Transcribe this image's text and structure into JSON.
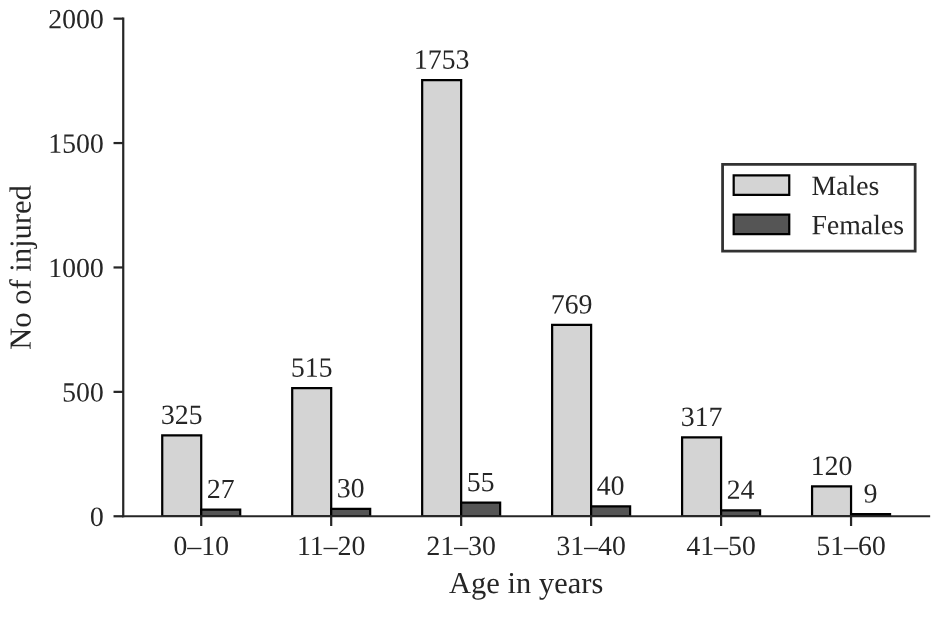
{
  "chart_data": {
    "type": "bar",
    "xlabel": "Age in years",
    "ylabel": "No of injured",
    "categories": [
      "0–10",
      "11–20",
      "21–30",
      "31–40",
      "41–50",
      "51–60"
    ],
    "series": [
      {
        "name": "Males",
        "color": "#d4d4d4",
        "values": [
          325,
          515,
          1753,
          769,
          317,
          120
        ]
      },
      {
        "name": "Females",
        "color": "#555555",
        "values": [
          27,
          30,
          55,
          40,
          24,
          9
        ]
      }
    ],
    "ylim": [
      0,
      2000
    ],
    "yticks": [
      0,
      500,
      1000,
      1500,
      2000
    ],
    "data_labels": true,
    "legend": "right",
    "grid": false
  }
}
